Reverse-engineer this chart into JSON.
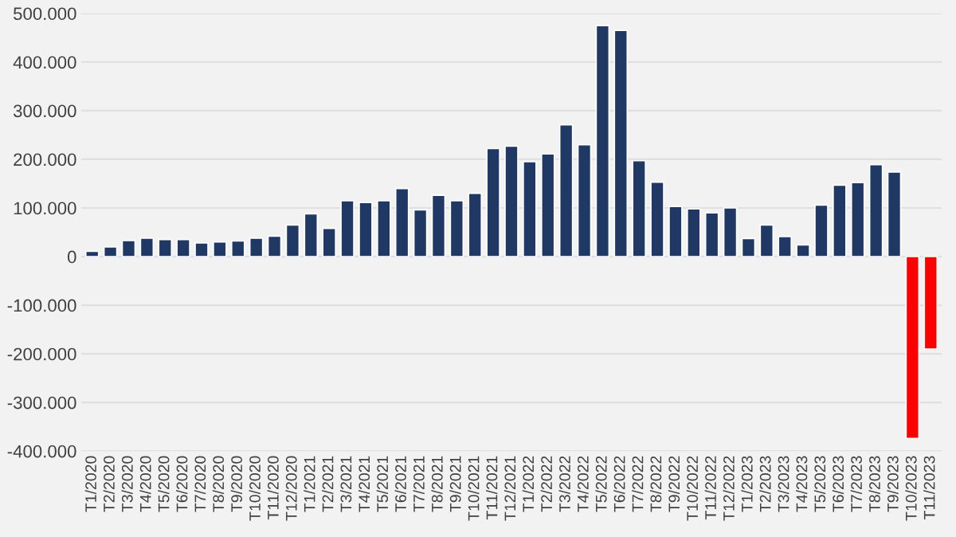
{
  "chart_data": {
    "type": "bar",
    "categories": [
      "T1/2020",
      "T2/2020",
      "T3/2020",
      "T4/2020",
      "T5/2020",
      "T6/2020",
      "T7/2020",
      "T8/2020",
      "T9/2020",
      "T10/2020",
      "T11/2020",
      "T12/2020",
      "T1/2021",
      "T2/2021",
      "T3/2021",
      "T4/2021",
      "T5/2021",
      "T6/2021",
      "T7/2021",
      "T8/2021",
      "T9/2021",
      "T10/2021",
      "T11/2021",
      "T12/2021",
      "T1/2022",
      "T2/2022",
      "T3/2022",
      "T4/2022",
      "T5/2022",
      "T6/2022",
      "T7/2022",
      "T8/2022",
      "T9/2022",
      "T10/2022",
      "T11/2022",
      "T12/2022",
      "T1/2023",
      "T2/2023",
      "T3/2023",
      "T4/2023",
      "T5/2023",
      "T6/2023",
      "T7/2023",
      "T8/2023",
      "T9/2023",
      "T10/2023",
      "T11/2023"
    ],
    "values": [
      11000,
      20000,
      33000,
      38000,
      35000,
      35000,
      28000,
      30000,
      32000,
      38000,
      42000,
      65000,
      88000,
      58000,
      115000,
      111000,
      115000,
      140000,
      96000,
      126000,
      115000,
      130000,
      222000,
      227000,
      195000,
      211000,
      271000,
      230000,
      475000,
      465000,
      197000,
      153000,
      103000,
      98000,
      90000,
      100000,
      37000,
      65000,
      41000,
      24000,
      106000,
      147000,
      152000,
      189000,
      174000,
      -374000,
      -190000
    ],
    "colors": [
      "#1f3864",
      "#1f3864",
      "#1f3864",
      "#1f3864",
      "#1f3864",
      "#1f3864",
      "#1f3864",
      "#1f3864",
      "#1f3864",
      "#1f3864",
      "#1f3864",
      "#1f3864",
      "#1f3864",
      "#1f3864",
      "#1f3864",
      "#1f3864",
      "#1f3864",
      "#1f3864",
      "#1f3864",
      "#1f3864",
      "#1f3864",
      "#1f3864",
      "#1f3864",
      "#1f3864",
      "#1f3864",
      "#1f3864",
      "#1f3864",
      "#1f3864",
      "#1f3864",
      "#1f3864",
      "#1f3864",
      "#1f3864",
      "#1f3864",
      "#1f3864",
      "#1f3864",
      "#1f3864",
      "#1f3864",
      "#1f3864",
      "#1f3864",
      "#1f3864",
      "#1f3864",
      "#1f3864",
      "#1f3864",
      "#1f3864",
      "#1f3864",
      "#ff0000",
      "#ff0000"
    ],
    "ylim": [
      -400000,
      500000
    ],
    "yticks": [
      {
        "value": -400000,
        "label": "-400.000"
      },
      {
        "value": -300000,
        "label": "-300.000"
      },
      {
        "value": -200000,
        "label": "-200.000"
      },
      {
        "value": -100000,
        "label": "-100.000"
      },
      0,
      {
        "value": 100000,
        "label": "100.000"
      },
      {
        "value": 200000,
        "label": "200.000"
      },
      {
        "value": 300000,
        "label": "300.000"
      },
      {
        "value": 400000,
        "label": "400.000"
      },
      {
        "value": 500000,
        "label": "500.000"
      }
    ],
    "grid": "y"
  }
}
